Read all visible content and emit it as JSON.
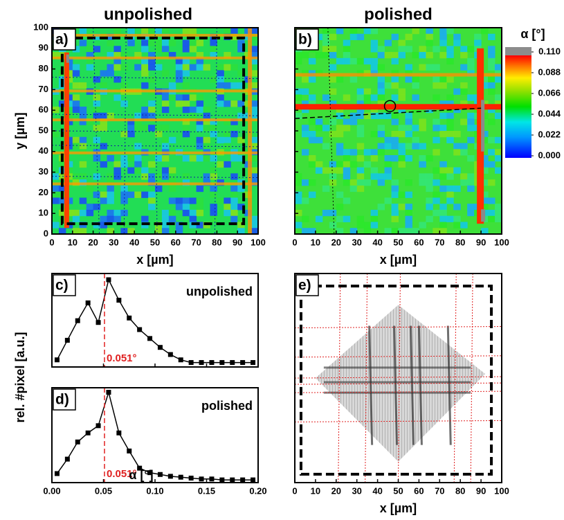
{
  "chart_data": [
    {
      "type": "heatmap",
      "panel": "a)",
      "title": "unpolished",
      "xlabel": "x [µm]",
      "ylabel": "y [µm]",
      "xlim": [
        0,
        100
      ],
      "xticks": [
        0,
        10,
        20,
        30,
        40,
        50,
        60,
        70,
        80,
        90,
        100
      ],
      "ylim": [
        0,
        100
      ],
      "yticks": [
        0,
        10,
        20,
        30,
        40,
        50,
        60,
        70,
        80,
        90,
        100
      ]
    },
    {
      "type": "heatmap",
      "panel": "b)",
      "title": "polished",
      "xlabel": "x [µm]",
      "xlim": [
        0,
        100
      ],
      "xticks": [
        0,
        10,
        20,
        30,
        40,
        50,
        60,
        70,
        80,
        90,
        100
      ],
      "ylim": [
        0,
        100
      ],
      "yticks": [
        0,
        10,
        20,
        30,
        40,
        50,
        60,
        70,
        80,
        90,
        100
      ],
      "ytick_labels": false,
      "colorbar": {
        "title": "α [°]",
        "lim": [
          0,
          0.11
        ],
        "ticks": [
          {
            "value": 0.11,
            "label": "0.110"
          },
          {
            "value": 0.088,
            "label": "0.088"
          },
          {
            "value": 0.066,
            "label": "0.066"
          },
          {
            "value": 0.044,
            "label": "0.044"
          },
          {
            "value": 0.022,
            "label": "0.022"
          },
          {
            "value": 0,
            "label": "0.000"
          }
        ]
      }
    },
    {
      "type": "line",
      "panel": "c)",
      "title": "unpolished",
      "ylabel": "rel. #pixel [a.u.]",
      "color": "#000000",
      "x": [
        0.005,
        0.015,
        0.025,
        0.035,
        0.045,
        0.055,
        0.065,
        0.075,
        0.085,
        0.095,
        0.105,
        0.115,
        0.125,
        0.135,
        0.145,
        0.155,
        0.165,
        0.175,
        0.185,
        0.195
      ],
      "values": [
        8,
        30,
        52,
        72,
        50,
        98,
        75,
        55,
        42,
        32,
        22,
        14,
        8,
        5,
        5,
        5,
        5,
        5,
        5,
        5
      ],
      "xlim": [
        0,
        0.2
      ],
      "xticks": [
        0,
        0.05,
        0.1,
        0.15,
        0.2
      ],
      "xtick_labels": false,
      "ylim": [
        0,
        105
      ],
      "marker": {
        "value": 0.051,
        "label": "0.051°",
        "color": "#e02020"
      }
    },
    {
      "type": "line",
      "panel": "d)",
      "title": "polished",
      "xlabel": "α [°]",
      "color": "#000000",
      "x": [
        0.005,
        0.015,
        0.025,
        0.035,
        0.045,
        0.055,
        0.065,
        0.075,
        0.085,
        0.095,
        0.105,
        0.115,
        0.125,
        0.135,
        0.145,
        0.155,
        0.165,
        0.175,
        0.185,
        0.195
      ],
      "values": [
        10,
        26,
        45,
        55,
        63,
        100,
        55,
        35,
        16,
        11,
        9,
        7,
        6,
        5,
        4,
        4,
        3,
        3,
        3,
        3
      ],
      "xlim": [
        0,
        0.2
      ],
      "xticks": [
        {
          "value": 0,
          "label": "0.00"
        },
        {
          "value": 0.05,
          "label": "0.05"
        },
        {
          "value": 0.1,
          "label": "0.10"
        },
        {
          "value": 0.15,
          "label": "0.15"
        },
        {
          "value": 0.2,
          "label": "0.20"
        }
      ],
      "ylim": [
        0,
        105
      ],
      "marker": {
        "value": 0.051,
        "label": "0.051°",
        "color": "#e02020"
      }
    },
    {
      "type": "image",
      "panel": "e)",
      "xlabel": "x [µm]",
      "xlim": [
        0,
        100
      ],
      "xticks": [
        0,
        10,
        20,
        30,
        40,
        50,
        60,
        70,
        80,
        90,
        100
      ]
    }
  ]
}
